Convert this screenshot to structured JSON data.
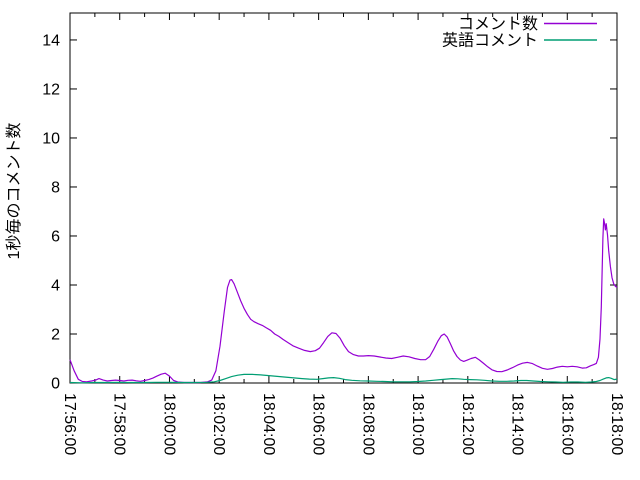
{
  "chart_data": {
    "type": "line",
    "ylabel": "1秒毎のコメント数",
    "xlabel": "",
    "x_start": "17:56:00",
    "x_end": "18:18:00",
    "x_span_seconds": 1320,
    "x_tick_interval_seconds": 120,
    "x_minor_interval_seconds": 60,
    "x_tick_labels": [
      "17:56:00",
      "17:58:00",
      "18:00:00",
      "18:02:00",
      "18:04:00",
      "18:06:00",
      "18:08:00",
      "18:10:00",
      "18:12:00",
      "18:14:00",
      "18:16:00",
      "18:18:00"
    ],
    "y_ticks": [
      0,
      2,
      4,
      6,
      8,
      10,
      12,
      14
    ],
    "ylim": [
      0,
      15.1
    ],
    "grid": false,
    "legend_position": "top-right-inside",
    "background": "#ffffff",
    "axis_color": "#000000",
    "series": [
      {
        "name": "コメント数",
        "color": "#9400d3",
        "points": [
          [
            0,
            0.95
          ],
          [
            10,
            0.5
          ],
          [
            20,
            0.15
          ],
          [
            30,
            0.06
          ],
          [
            40,
            0.05
          ],
          [
            52,
            0.08
          ],
          [
            62,
            0.12
          ],
          [
            70,
            0.18
          ],
          [
            80,
            0.12
          ],
          [
            90,
            0.08
          ],
          [
            100,
            0.1
          ],
          [
            110,
            0.12
          ],
          [
            120,
            0.1
          ],
          [
            130,
            0.08
          ],
          [
            140,
            0.11
          ],
          [
            150,
            0.12
          ],
          [
            160,
            0.09
          ],
          [
            170,
            0.07
          ],
          [
            180,
            0.1
          ],
          [
            190,
            0.14
          ],
          [
            200,
            0.2
          ],
          [
            210,
            0.28
          ],
          [
            220,
            0.36
          ],
          [
            230,
            0.4
          ],
          [
            240,
            0.28
          ],
          [
            250,
            0.1
          ],
          [
            260,
            0.04
          ],
          [
            275,
            0.02
          ],
          [
            295,
            0.02
          ],
          [
            315,
            0.02
          ],
          [
            332,
            0.05
          ],
          [
            342,
            0.12
          ],
          [
            352,
            0.5
          ],
          [
            362,
            1.5
          ],
          [
            372,
            2.9
          ],
          [
            380,
            3.9
          ],
          [
            386,
            4.2
          ],
          [
            390,
            4.22
          ],
          [
            396,
            4.05
          ],
          [
            404,
            3.7
          ],
          [
            412,
            3.35
          ],
          [
            420,
            3.05
          ],
          [
            428,
            2.8
          ],
          [
            436,
            2.6
          ],
          [
            444,
            2.5
          ],
          [
            454,
            2.42
          ],
          [
            464,
            2.35
          ],
          [
            474,
            2.25
          ],
          [
            484,
            2.15
          ],
          [
            494,
            2.0
          ],
          [
            504,
            1.9
          ],
          [
            514,
            1.78
          ],
          [
            526,
            1.65
          ],
          [
            538,
            1.52
          ],
          [
            552,
            1.42
          ],
          [
            566,
            1.33
          ],
          [
            580,
            1.28
          ],
          [
            592,
            1.32
          ],
          [
            602,
            1.42
          ],
          [
            612,
            1.65
          ],
          [
            622,
            1.9
          ],
          [
            632,
            2.05
          ],
          [
            642,
            2.02
          ],
          [
            652,
            1.82
          ],
          [
            662,
            1.52
          ],
          [
            672,
            1.28
          ],
          [
            684,
            1.16
          ],
          [
            696,
            1.1
          ],
          [
            708,
            1.1
          ],
          [
            720,
            1.12
          ],
          [
            734,
            1.1
          ],
          [
            748,
            1.06
          ],
          [
            762,
            1.02
          ],
          [
            776,
            1.0
          ],
          [
            790,
            1.05
          ],
          [
            804,
            1.1
          ],
          [
            818,
            1.07
          ],
          [
            832,
            1.0
          ],
          [
            846,
            0.95
          ],
          [
            858,
            0.95
          ],
          [
            868,
            1.08
          ],
          [
            878,
            1.38
          ],
          [
            888,
            1.72
          ],
          [
            896,
            1.93
          ],
          [
            903,
            2.0
          ],
          [
            910,
            1.88
          ],
          [
            918,
            1.6
          ],
          [
            926,
            1.3
          ],
          [
            934,
            1.08
          ],
          [
            942,
            0.94
          ],
          [
            950,
            0.88
          ],
          [
            958,
            0.93
          ],
          [
            968,
            1.0
          ],
          [
            978,
            1.05
          ],
          [
            988,
            0.94
          ],
          [
            998,
            0.8
          ],
          [
            1008,
            0.66
          ],
          [
            1018,
            0.54
          ],
          [
            1030,
            0.47
          ],
          [
            1042,
            0.46
          ],
          [
            1055,
            0.53
          ],
          [
            1068,
            0.63
          ],
          [
            1080,
            0.73
          ],
          [
            1092,
            0.81
          ],
          [
            1104,
            0.84
          ],
          [
            1116,
            0.79
          ],
          [
            1128,
            0.69
          ],
          [
            1140,
            0.6
          ],
          [
            1152,
            0.56
          ],
          [
            1164,
            0.59
          ],
          [
            1176,
            0.65
          ],
          [
            1188,
            0.68
          ],
          [
            1200,
            0.66
          ],
          [
            1212,
            0.68
          ],
          [
            1224,
            0.66
          ],
          [
            1236,
            0.61
          ],
          [
            1246,
            0.62
          ],
          [
            1256,
            0.7
          ],
          [
            1264,
            0.75
          ],
          [
            1270,
            0.8
          ],
          [
            1275,
            1.05
          ],
          [
            1279,
            1.8
          ],
          [
            1282,
            3.1
          ],
          [
            1284,
            4.5
          ],
          [
            1286,
            5.9
          ],
          [
            1288,
            6.7
          ],
          [
            1290,
            6.5
          ],
          [
            1292,
            6.25
          ],
          [
            1294,
            6.5
          ],
          [
            1297,
            6.05
          ],
          [
            1300,
            5.4
          ],
          [
            1304,
            4.75
          ],
          [
            1308,
            4.3
          ],
          [
            1312,
            4.05
          ],
          [
            1316,
            3.95
          ],
          [
            1320,
            3.9
          ]
        ]
      },
      {
        "name": "英語コメント",
        "color": "#009e73",
        "points": [
          [
            0,
            0.02
          ],
          [
            30,
            0.01
          ],
          [
            60,
            0.02
          ],
          [
            90,
            0.02
          ],
          [
            120,
            0.03
          ],
          [
            150,
            0.02
          ],
          [
            180,
            0.02
          ],
          [
            210,
            0.03
          ],
          [
            240,
            0.03
          ],
          [
            270,
            0.02
          ],
          [
            300,
            0.02
          ],
          [
            330,
            0.03
          ],
          [
            348,
            0.05
          ],
          [
            362,
            0.1
          ],
          [
            376,
            0.18
          ],
          [
            390,
            0.26
          ],
          [
            405,
            0.32
          ],
          [
            420,
            0.35
          ],
          [
            440,
            0.35
          ],
          [
            460,
            0.33
          ],
          [
            480,
            0.3
          ],
          [
            500,
            0.27
          ],
          [
            520,
            0.24
          ],
          [
            540,
            0.21
          ],
          [
            560,
            0.18
          ],
          [
            578,
            0.16
          ],
          [
            596,
            0.15
          ],
          [
            610,
            0.18
          ],
          [
            624,
            0.21
          ],
          [
            636,
            0.22
          ],
          [
            650,
            0.19
          ],
          [
            664,
            0.14
          ],
          [
            680,
            0.11
          ],
          [
            700,
            0.09
          ],
          [
            720,
            0.08
          ],
          [
            740,
            0.07
          ],
          [
            760,
            0.06
          ],
          [
            780,
            0.05
          ],
          [
            800,
            0.05
          ],
          [
            820,
            0.05
          ],
          [
            840,
            0.06
          ],
          [
            858,
            0.08
          ],
          [
            876,
            0.11
          ],
          [
            894,
            0.14
          ],
          [
            908,
            0.16
          ],
          [
            922,
            0.18
          ],
          [
            936,
            0.17
          ],
          [
            950,
            0.15
          ],
          [
            966,
            0.14
          ],
          [
            982,
            0.13
          ],
          [
            1000,
            0.11
          ],
          [
            1018,
            0.08
          ],
          [
            1036,
            0.07
          ],
          [
            1054,
            0.07
          ],
          [
            1072,
            0.08
          ],
          [
            1088,
            0.1
          ],
          [
            1102,
            0.1
          ],
          [
            1118,
            0.08
          ],
          [
            1136,
            0.06
          ],
          [
            1154,
            0.05
          ],
          [
            1172,
            0.04
          ],
          [
            1190,
            0.03
          ],
          [
            1208,
            0.04
          ],
          [
            1226,
            0.04
          ],
          [
            1244,
            0.03
          ],
          [
            1258,
            0.04
          ],
          [
            1270,
            0.06
          ],
          [
            1279,
            0.1
          ],
          [
            1287,
            0.16
          ],
          [
            1294,
            0.21
          ],
          [
            1300,
            0.22
          ],
          [
            1306,
            0.19
          ],
          [
            1313,
            0.14
          ],
          [
            1320,
            0.16
          ]
        ]
      }
    ]
  }
}
